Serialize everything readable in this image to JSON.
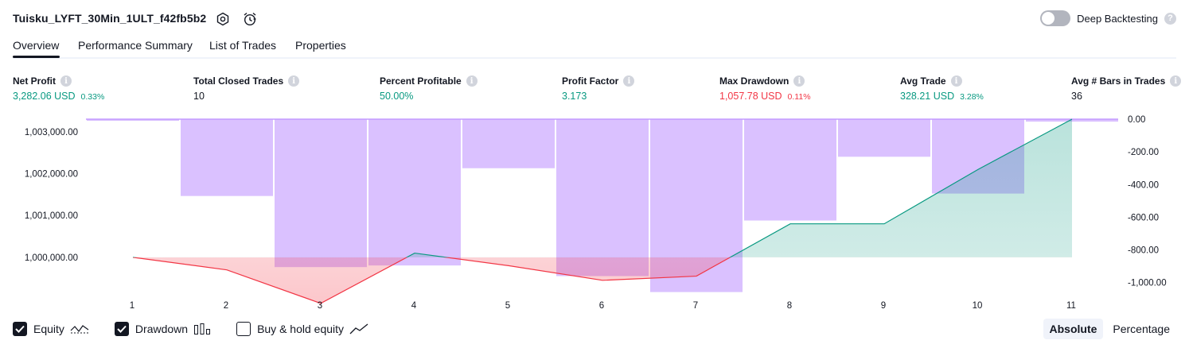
{
  "header": {
    "title": "Tuisku_LYFT_30Min_1ULT_f42fb5b2",
    "deep_backtesting_label": "Deep Backtesting",
    "deep_backtesting_enabled": false
  },
  "tabs": [
    {
      "label": "Overview",
      "active": true
    },
    {
      "label": "Performance Summary",
      "active": false
    },
    {
      "label": "List of Trades",
      "active": false
    },
    {
      "label": "Properties",
      "active": false
    }
  ],
  "metrics": [
    {
      "label": "Net Profit",
      "value": "3,282.06 USD",
      "sub": "0.33%",
      "color": "#089981"
    },
    {
      "label": "Total Closed Trades",
      "value": "10",
      "sub": "",
      "color": "#131722"
    },
    {
      "label": "Percent Profitable",
      "value": "50.00%",
      "sub": "",
      "color": "#089981"
    },
    {
      "label": "Profit Factor",
      "value": "3.173",
      "sub": "",
      "color": "#089981"
    },
    {
      "label": "Max Drawdown",
      "value": "1,057.78 USD",
      "sub": "0.11%",
      "color": "#f23645"
    },
    {
      "label": "Avg Trade",
      "value": "328.21 USD",
      "sub": "3.28%",
      "color": "#089981"
    },
    {
      "label": "Avg # Bars in Trades",
      "value": "36",
      "sub": "",
      "color": "#131722"
    }
  ],
  "chart_data": {
    "type": "line",
    "x": [
      1,
      2,
      3,
      4,
      5,
      6,
      7,
      8,
      9,
      10,
      11
    ],
    "left_axis": {
      "ticks": [
        "1,003,000.00",
        "1,002,000.00",
        "1,001,000.00",
        "1,000,000.00"
      ],
      "tick_values": [
        1003000,
        1002000,
        1001000,
        1000000
      ],
      "range": [
        999200,
        1003300
      ]
    },
    "right_axis": {
      "ticks": [
        "0.00",
        "-200.00",
        "-400.00",
        "-600.00",
        "-800.00",
        "-1,000.00"
      ],
      "tick_values": [
        0,
        -200,
        -400,
        -600,
        -800,
        -1000
      ],
      "range": [
        -1050,
        0
      ]
    },
    "series": [
      {
        "name": "Equity",
        "axis": "left",
        "values": [
          1000000,
          999700,
          998900,
          1000100,
          999800,
          999450,
          999550,
          1000800,
          1000800,
          1002100,
          1003300
        ]
      },
      {
        "name": "Drawdown",
        "axis": "right",
        "type": "bar",
        "values": [
          0,
          -470,
          -905,
          -895,
          -300,
          -960,
          -1057.78,
          -620,
          -230,
          -455,
          -15
        ]
      }
    ],
    "baseline": 1000000,
    "colors": {
      "equity_up": "#089981",
      "equity_down": "#f23645",
      "drawdown": "#c39bff",
      "axis_text": "#131722"
    }
  },
  "legend": [
    {
      "label": "Equity",
      "checked": true,
      "icon": "equity-icon"
    },
    {
      "label": "Drawdown",
      "checked": true,
      "icon": "drawdown-bars-icon"
    },
    {
      "label": "Buy & hold equity",
      "checked": false,
      "icon": "buy-hold-line-icon"
    }
  ],
  "mode": {
    "options": [
      "Absolute",
      "Percentage"
    ],
    "selected": "Absolute"
  }
}
